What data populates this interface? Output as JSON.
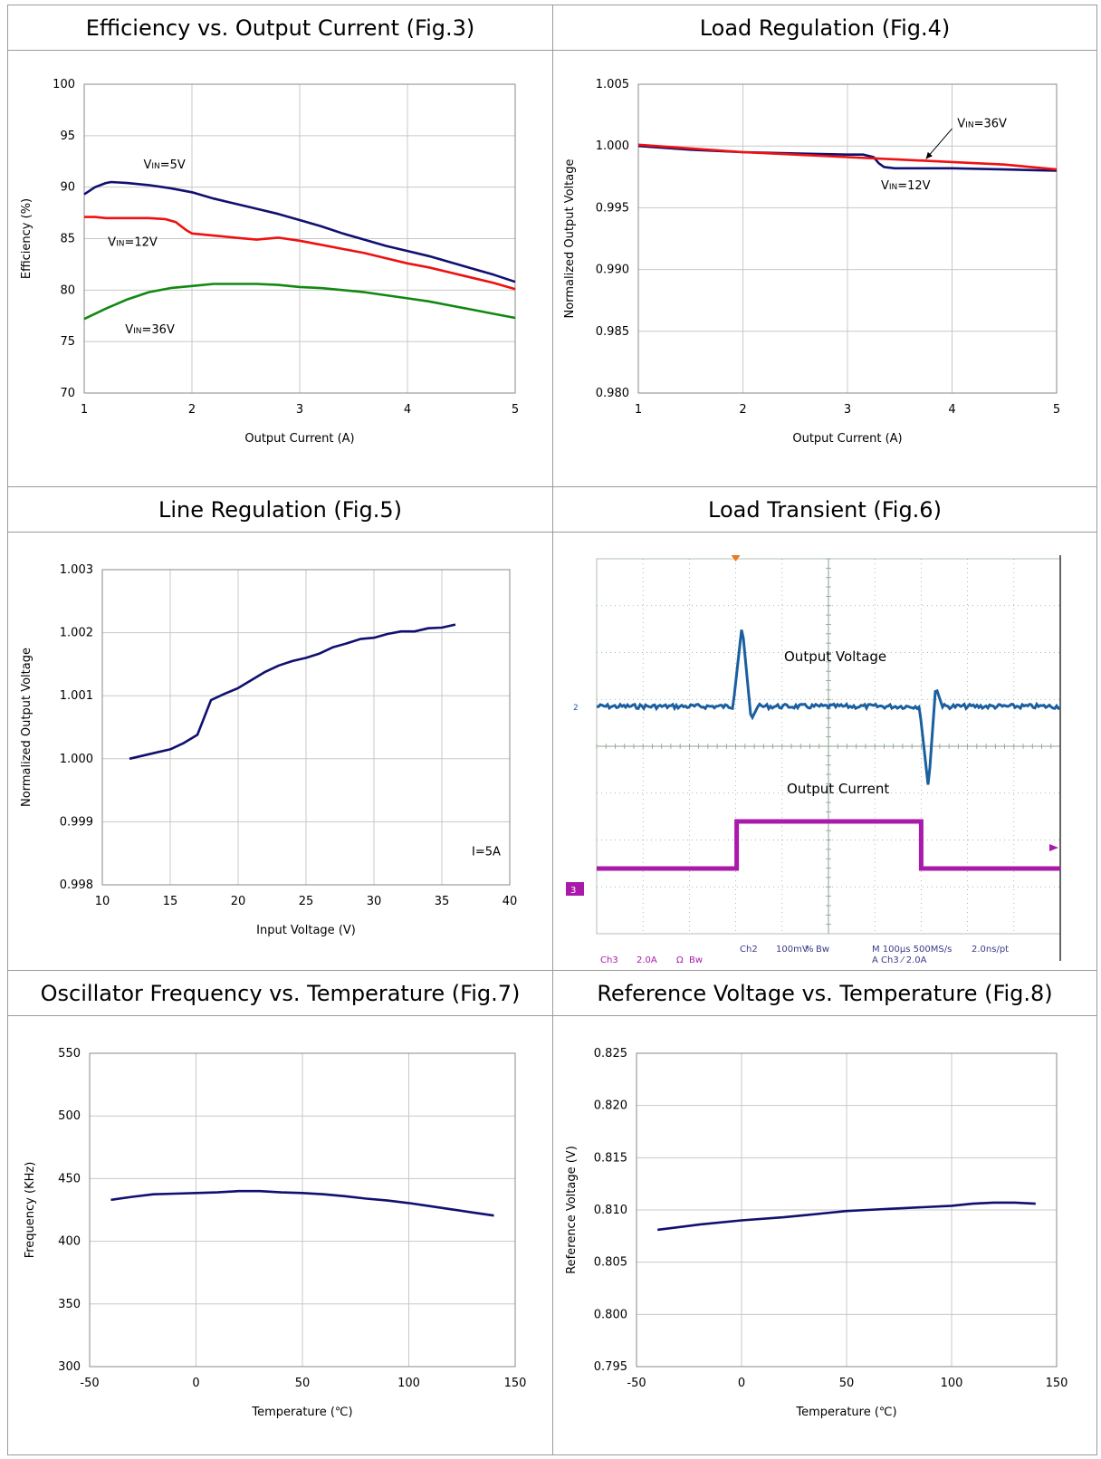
{
  "panels": [
    {
      "title": "Efficiency vs. Output Current (Fig.3)"
    },
    {
      "title": "Load Regulation (Fig.4)"
    },
    {
      "title": "Line Regulation (Fig.5)"
    },
    {
      "title": "Load Transient (Fig.6)"
    },
    {
      "title": "Oscillator Frequency vs. Temperature (Fig.7)"
    },
    {
      "title": "Reference Voltage vs. Temperature (Fig.8)"
    }
  ],
  "colors": {
    "navy": "#101070",
    "red": "#ee1111",
    "green": "#118811",
    "scope_bg": "#ffffff",
    "scope_grid": "#8aa090",
    "cyan": "#1a5fa0",
    "magenta": "#aa1aaa"
  },
  "scope": {
    "label_voltage": "Output Voltage",
    "label_current": "Output Current",
    "ch2_marker": "2",
    "ch3_marker": "3",
    "readout_row1": [
      "Ch2",
      "100mV",
      "%",
      "Bw",
      "M 100µs 500MS/s",
      "2.0ns/pt"
    ],
    "readout_row2": [
      "Ch3",
      "2.0A",
      "Ω",
      "Bw",
      "A  Ch3  ⁄  2.0A"
    ]
  },
  "chart_data": [
    {
      "type": "line",
      "xlabel": "Output Current (A)",
      "ylabel": "Efficiency (%)",
      "xlim": [
        1,
        5
      ],
      "ylim": [
        70,
        100
      ],
      "xticks": [
        1,
        2,
        3,
        4,
        5
      ],
      "yticks": [
        70,
        75,
        80,
        85,
        90,
        95,
        100
      ],
      "yfmt": 0,
      "annotations": [
        {
          "text": "VIN=5V",
          "x": 1.55,
          "y": 91.8
        },
        {
          "text": "VIN=12V",
          "x": 1.22,
          "y": 84.3
        },
        {
          "text": "VIN=36V",
          "x": 1.38,
          "y": 75.8
        }
      ],
      "series": [
        {
          "name": "VIN=5V",
          "color": "navy",
          "x": [
            1,
            1.1,
            1.2,
            1.25,
            1.4,
            1.6,
            1.8,
            2,
            2.2,
            2.4,
            2.6,
            2.8,
            3,
            3.2,
            3.4,
            3.6,
            3.8,
            4,
            4.2,
            4.4,
            4.6,
            4.8,
            5
          ],
          "y": [
            89.3,
            90,
            90.4,
            90.5,
            90.4,
            90.2,
            89.9,
            89.5,
            88.9,
            88.4,
            87.9,
            87.4,
            86.8,
            86.2,
            85.5,
            84.9,
            84.3,
            83.8,
            83.3,
            82.7,
            82.1,
            81.5,
            80.8
          ]
        },
        {
          "name": "VIN=12V",
          "color": "red",
          "x": [
            1,
            1.1,
            1.2,
            1.4,
            1.6,
            1.75,
            1.85,
            1.95,
            2,
            2.2,
            2.4,
            2.6,
            2.8,
            3,
            3.2,
            3.4,
            3.6,
            3.8,
            4,
            4.2,
            4.4,
            4.6,
            4.8,
            5
          ],
          "y": [
            87.1,
            87.1,
            87,
            87,
            87,
            86.9,
            86.6,
            85.8,
            85.5,
            85.3,
            85.1,
            84.9,
            85.1,
            84.8,
            84.4,
            84,
            83.6,
            83.1,
            82.6,
            82.2,
            81.7,
            81.2,
            80.7,
            80.1
          ]
        },
        {
          "name": "VIN=36V",
          "color": "green",
          "x": [
            1,
            1.2,
            1.4,
            1.6,
            1.8,
            2,
            2.2,
            2.4,
            2.6,
            2.8,
            3,
            3.2,
            3.4,
            3.6,
            3.8,
            4,
            4.2,
            4.4,
            4.6,
            4.8,
            5
          ],
          "y": [
            77.2,
            78.2,
            79.1,
            79.8,
            80.2,
            80.4,
            80.6,
            80.6,
            80.6,
            80.5,
            80.3,
            80.2,
            80,
            79.8,
            79.5,
            79.2,
            78.9,
            78.5,
            78.1,
            77.7,
            77.3
          ]
        }
      ]
    },
    {
      "type": "line",
      "xlabel": "Output Current (A)",
      "ylabel": "Normalized Output Voltage",
      "xlim": [
        1,
        5
      ],
      "ylim": [
        0.98,
        1.005
      ],
      "xticks": [
        1,
        2,
        3,
        4,
        5
      ],
      "yticks": [
        0.98,
        0.985,
        0.99,
        0.995,
        1.0,
        1.005
      ],
      "yfmt": 3,
      "annotations": [
        {
          "text": "VIN=36V",
          "x": 4.05,
          "y": 1.0015
        },
        {
          "text": "VIN=12V",
          "x": 3.32,
          "y": 0.9965
        }
      ],
      "arrow": {
        "from": [
          4.0,
          1.0014
        ],
        "to": [
          3.75,
          0.99895
        ]
      },
      "series": [
        {
          "name": "VIN=12V",
          "color": "navy",
          "x": [
            1,
            1.5,
            2,
            2.5,
            3,
            3.15,
            3.25,
            3.3,
            3.35,
            3.45,
            4,
            4.5,
            5
          ],
          "y": [
            1.0,
            0.9997,
            0.9995,
            0.9994,
            0.9993,
            0.9993,
            0.9991,
            0.9986,
            0.9983,
            0.9982,
            0.9982,
            0.9981,
            0.998
          ]
        },
        {
          "name": "VIN=36V",
          "color": "red",
          "x": [
            1,
            1.5,
            2,
            2.5,
            3,
            3.5,
            4,
            4.5,
            5
          ],
          "y": [
            1.0001,
            0.9998,
            0.9995,
            0.9993,
            0.9991,
            0.9989,
            0.9987,
            0.9985,
            0.9981
          ]
        }
      ]
    },
    {
      "type": "line",
      "xlabel": "Input Voltage (V)",
      "ylabel": "Normalized Output Voltage",
      "xlim": [
        10,
        40
      ],
      "ylim": [
        0.998,
        1.003
      ],
      "xticks": [
        10,
        15,
        20,
        25,
        30,
        35,
        40
      ],
      "yticks": [
        0.998,
        0.999,
        1.0,
        1.001,
        1.002,
        1.003
      ],
      "yfmt": 3,
      "annotations": [
        {
          "text": "I=5A",
          "x": 37.2,
          "y": 0.99847
        }
      ],
      "series": [
        {
          "name": "",
          "color": "navy",
          "x": [
            12,
            13,
            14,
            15,
            16,
            17,
            18,
            19,
            20,
            21,
            22,
            23,
            24,
            25,
            26,
            27,
            28,
            29,
            30,
            31,
            32,
            33,
            34,
            35,
            36
          ],
          "y": [
            1.0,
            1.00005,
            1.0001,
            1.00015,
            1.00025,
            1.00038,
            1.00093,
            1.00103,
            1.00112,
            1.00125,
            1.00138,
            1.00148,
            1.00155,
            1.0016,
            1.00167,
            1.00177,
            1.00183,
            1.0019,
            1.00192,
            1.00198,
            1.00202,
            1.00202,
            1.00207,
            1.00208,
            1.00213
          ]
        }
      ]
    },
    {
      "type": "oscilloscope",
      "series": [
        {
          "name": "Output Voltage",
          "color": "cyan"
        },
        {
          "name": "Output Current",
          "color": "magenta"
        }
      ]
    },
    {
      "type": "line",
      "xlabel": "Temperature (℃)",
      "ylabel": "Frequency (KHz)",
      "xlim": [
        -50,
        150
      ],
      "ylim": [
        300,
        550
      ],
      "xticks": [
        -50,
        0,
        50,
        100,
        150
      ],
      "yticks": [
        300,
        350,
        400,
        450,
        500,
        550
      ],
      "yfmt": 0,
      "series": [
        {
          "name": "",
          "color": "navy",
          "x": [
            -40,
            -30,
            -20,
            -10,
            0,
            10,
            20,
            30,
            40,
            50,
            60,
            70,
            80,
            90,
            100,
            110,
            120,
            130,
            140
          ],
          "y": [
            433,
            435.5,
            437.5,
            438,
            438.5,
            439,
            440,
            440,
            439,
            438.5,
            437.5,
            436,
            434,
            432.5,
            430.5,
            428,
            425.5,
            423,
            420.5
          ]
        }
      ]
    },
    {
      "type": "line",
      "xlabel": "Temperature (℃)",
      "ylabel": "Reference Voltage (V)",
      "xlim": [
        -50,
        150
      ],
      "ylim": [
        0.795,
        0.825
      ],
      "xticks": [
        -50,
        0,
        50,
        100,
        150
      ],
      "yticks": [
        0.795,
        0.8,
        0.805,
        0.81,
        0.815,
        0.82,
        0.825
      ],
      "yfmt": 3,
      "series": [
        {
          "name": "",
          "color": "navy",
          "x": [
            -40,
            -20,
            0,
            20,
            30,
            40,
            50,
            60,
            70,
            80,
            100,
            110,
            120,
            130,
            140
          ],
          "y": [
            0.8081,
            0.8086,
            0.809,
            0.8093,
            0.8095,
            0.8097,
            0.8099,
            0.81,
            0.8101,
            0.8102,
            0.8104,
            0.8106,
            0.8107,
            0.8107,
            0.8106
          ]
        }
      ]
    }
  ]
}
